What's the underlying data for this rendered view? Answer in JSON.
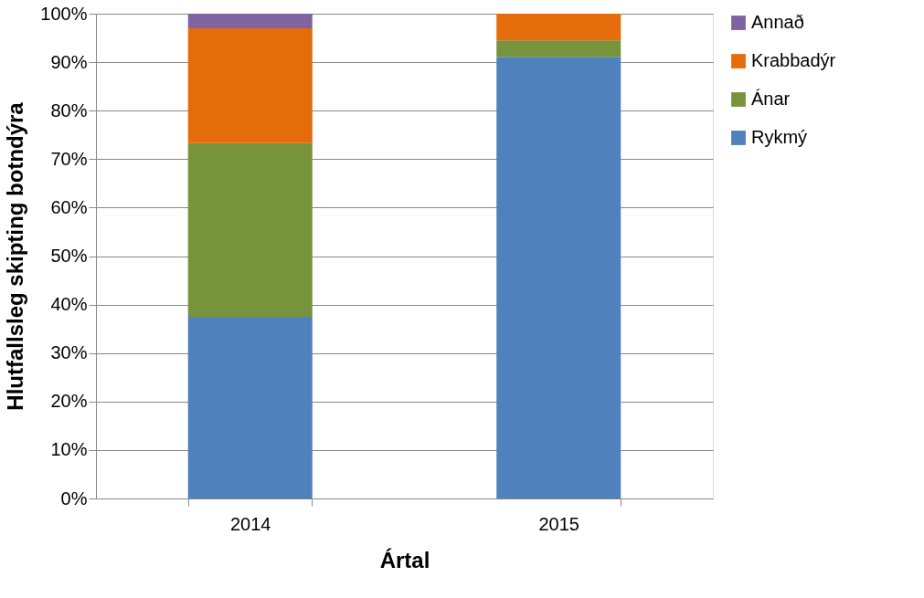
{
  "chart_data": {
    "type": "bar",
    "stacked": true,
    "xlabel": "Ártal",
    "ylabel": "Hlutfallsleg skipting botndýra",
    "categories": [
      "2014",
      "2015"
    ],
    "series": [
      {
        "name": "Rykmý",
        "color": "#4f81bd",
        "values": [
          37.5,
          91.1
        ]
      },
      {
        "name": "Ánar",
        "color": "#77933c",
        "values": [
          35.8,
          3.4
        ]
      },
      {
        "name": "Krabbadýr",
        "color": "#e46c0a",
        "values": [
          23.7,
          5.5
        ]
      },
      {
        "name": "Annað",
        "color": "#8064a2",
        "values": [
          3.0,
          0
        ]
      }
    ],
    "ylim": [
      0,
      100
    ],
    "yticks": [
      {
        "value": 0,
        "label": "0%"
      },
      {
        "value": 10,
        "label": "10%"
      },
      {
        "value": 20,
        "label": "20%"
      },
      {
        "value": 30,
        "label": "30%"
      },
      {
        "value": 40,
        "label": "40%"
      },
      {
        "value": 50,
        "label": "50%"
      },
      {
        "value": 60,
        "label": "60%"
      },
      {
        "value": 70,
        "label": "70%"
      },
      {
        "value": 80,
        "label": "80%"
      },
      {
        "value": 90,
        "label": "90%"
      },
      {
        "value": 100,
        "label": "100%"
      }
    ],
    "grid": "y",
    "legend": "right"
  }
}
